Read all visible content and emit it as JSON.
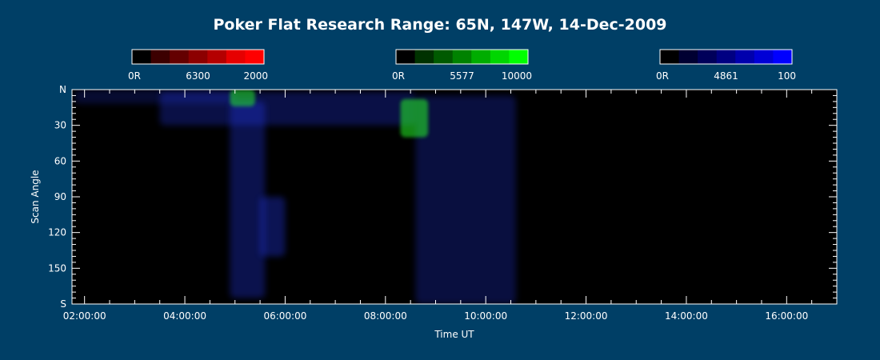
{
  "chart_data": {
    "type": "heatmap",
    "title": "Poker Flat Research Range: 65N, 147W, 14-Dec-2009",
    "xlabel": "Time UT",
    "ylabel": "Scan Angle",
    "x_tick_labels": [
      "02:00:00",
      "04:00:00",
      "06:00:00",
      "08:00:00",
      "10:00:00",
      "12:00:00",
      "14:00:00",
      "16:00:00"
    ],
    "x_tick_hours": [
      2,
      4,
      6,
      8,
      10,
      12,
      14,
      16
    ],
    "xlim_hours": [
      1.75,
      17.0
    ],
    "y_tick_labels": [
      "N",
      "30",
      "60",
      "90",
      "120",
      "150",
      "S"
    ],
    "y_tick_values": [
      0,
      30,
      60,
      90,
      120,
      150,
      180
    ],
    "ylim": [
      0,
      180
    ],
    "background_color": "#003f66",
    "plot_background": "#000000",
    "colorbars": [
      {
        "name": "red",
        "min_label": "0R",
        "wavelength_label": "6300",
        "max_label": "2000",
        "colors": [
          "#000000",
          "#3c0000",
          "#640000",
          "#8c0000",
          "#b40000",
          "#e60000",
          "#ff0000"
        ]
      },
      {
        "name": "green",
        "min_label": "0R",
        "wavelength_label": "5577",
        "max_label": "10000",
        "colors": [
          "#000000",
          "#003200",
          "#005a00",
          "#008200",
          "#00ad00",
          "#00d600",
          "#00ff00"
        ]
      },
      {
        "name": "blue",
        "min_label": "0R",
        "wavelength_label": "4861",
        "max_label": "100",
        "colors": [
          "#000000",
          "#000032",
          "#00005a",
          "#000082",
          "#0000ad",
          "#0000d6",
          "#0000ff"
        ]
      }
    ],
    "emission_features": [
      {
        "channel": "blue",
        "t_start": 1.8,
        "t_end": 5.0,
        "angle_start": 0,
        "angle_end": 12,
        "intensity": 0.35
      },
      {
        "channel": "blue",
        "t_start": 3.5,
        "t_end": 8.6,
        "angle_start": 2,
        "angle_end": 30,
        "intensity": 0.5
      },
      {
        "channel": "blue",
        "t_start": 4.9,
        "t_end": 5.6,
        "angle_start": 10,
        "angle_end": 175,
        "intensity": 0.55
      },
      {
        "channel": "blue",
        "t_start": 5.5,
        "t_end": 6.0,
        "angle_start": 90,
        "angle_end": 140,
        "intensity": 0.6
      },
      {
        "channel": "blue",
        "t_start": 8.6,
        "t_end": 10.6,
        "angle_start": 5,
        "angle_end": 180,
        "intensity": 0.45
      },
      {
        "channel": "green",
        "t_start": 4.9,
        "t_end": 5.4,
        "angle_start": 0,
        "angle_end": 14,
        "intensity": 0.9
      },
      {
        "channel": "green",
        "t_start": 8.3,
        "t_end": 8.85,
        "angle_start": 8,
        "angle_end": 40,
        "intensity": 0.95
      }
    ]
  }
}
